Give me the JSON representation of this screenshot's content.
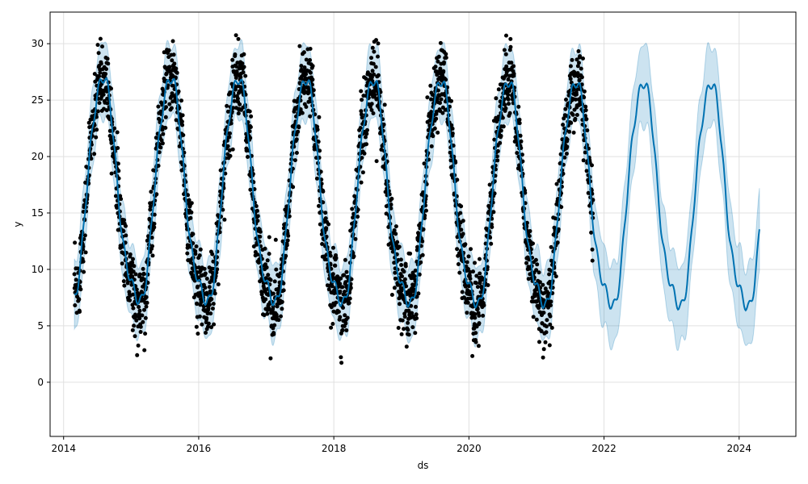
{
  "chart_data": {
    "type": "line",
    "title": "",
    "xlabel": "ds",
    "ylabel": "y",
    "xlim": [
      2013.8,
      2024.84
    ],
    "ylim": [
      -4.8,
      32.8
    ],
    "xticks": [
      2014,
      2016,
      2018,
      2020,
      2022,
      2024
    ],
    "xtick_labels": [
      "2014",
      "2016",
      "2018",
      "2020",
      "2022",
      "2024"
    ],
    "yticks": [
      0,
      5,
      10,
      15,
      20,
      25,
      30
    ],
    "ytick_labels": [
      "0",
      "5",
      "10",
      "15",
      "20",
      "25",
      "30"
    ],
    "grid": true,
    "history_range": [
      2014.16,
      2021.84
    ],
    "forecast_range": [
      2014.16,
      2024.3
    ],
    "trend": {
      "start_year": 2014.16,
      "start_value": 16.5,
      "slope_per_year": -0.06
    },
    "seasonal_amplitude": 10.0,
    "seasonal_peak_fraction": 0.58,
    "interval_halfwidth": 3.2,
    "series": [
      {
        "name": "",
        "kind": "observed-points",
        "color": "#000000"
      },
      {
        "name": "",
        "kind": "forecast-line",
        "color": "#0072b2"
      },
      {
        "name": "",
        "kind": "uncertainty-band",
        "color": "#0072b2",
        "opacity": 0.2
      }
    ],
    "axes_color": "#000000",
    "grid_color": "#e0e0e0"
  }
}
